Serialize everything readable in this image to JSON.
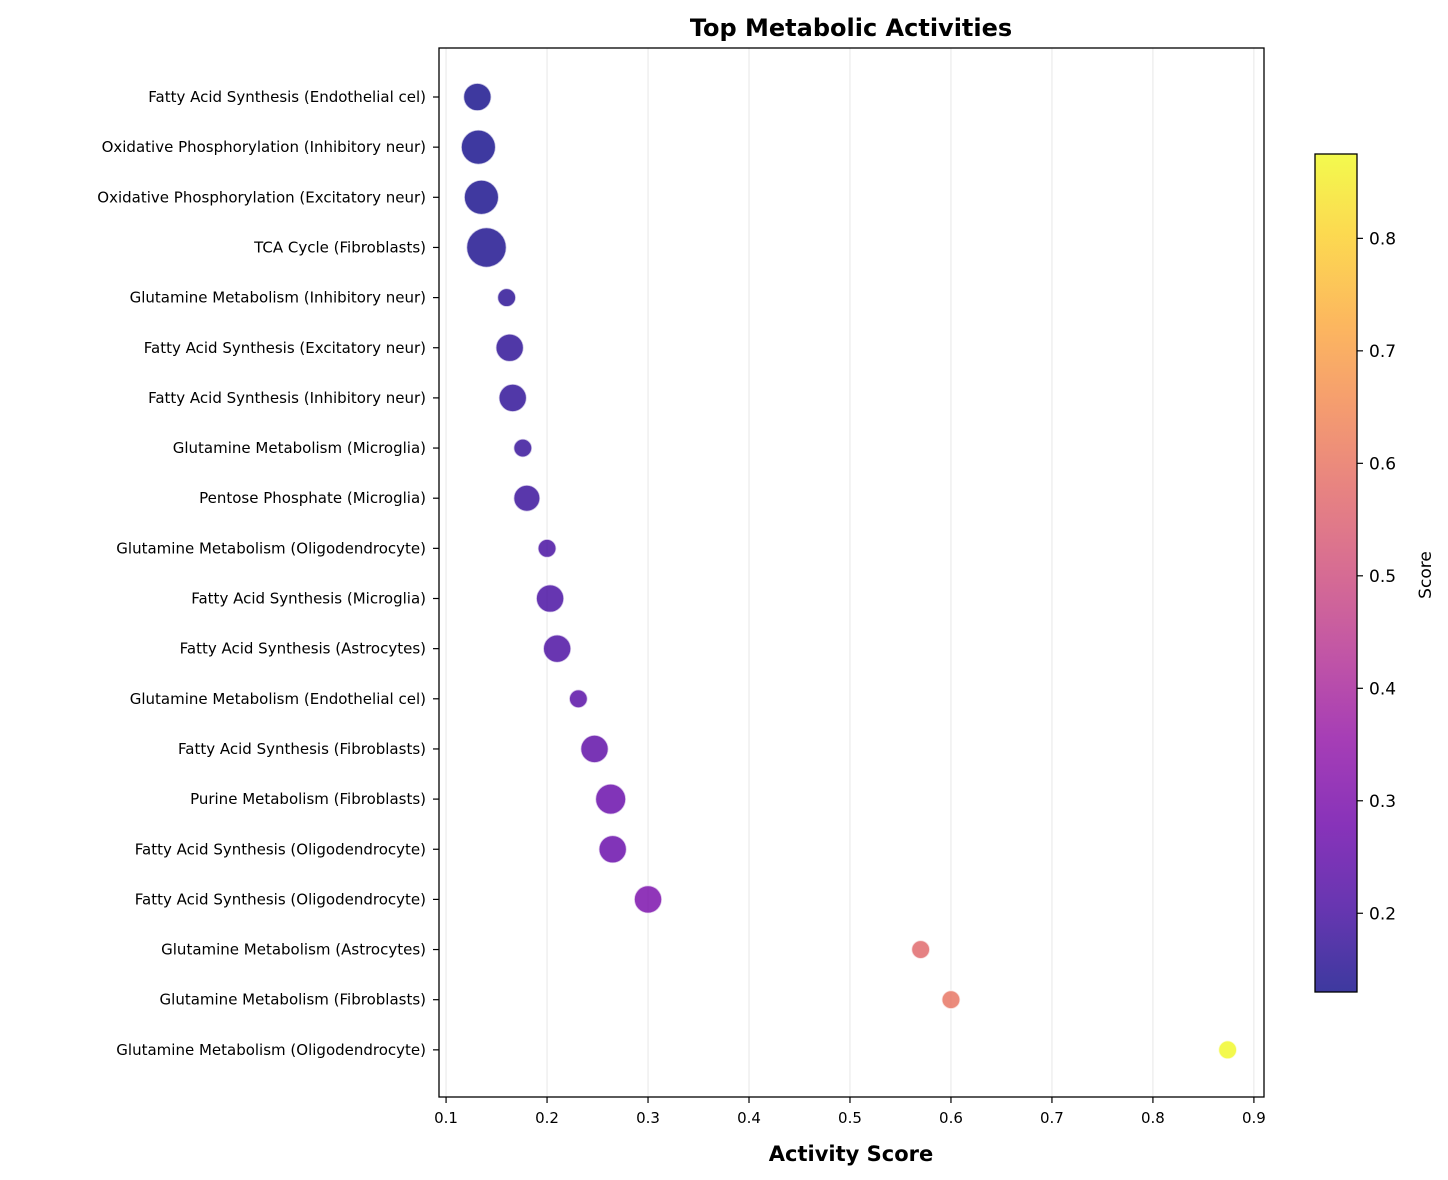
{
  "chart_data": {
    "type": "scatter",
    "title": "Top Metabolic Activities",
    "xlabel": "Activity Score",
    "ylabel": "",
    "xlim": [
      0.093,
      0.91
    ],
    "xticks": [
      0.1,
      0.2,
      0.3,
      0.4,
      0.5,
      0.6,
      0.7,
      0.8,
      0.9
    ],
    "xtick_labels": [
      "0.1",
      "0.2",
      "0.3",
      "0.4",
      "0.5",
      "0.6",
      "0.7",
      "0.8",
      "0.9"
    ],
    "grid": "vertical",
    "colormap": "plasma",
    "colorbar": {
      "label": "Score",
      "range": [
        0.13,
        0.875
      ],
      "ticks": [
        0.2,
        0.3,
        0.4,
        0.5,
        0.6,
        0.7,
        0.8
      ],
      "tick_labels": [
        "0.2",
        "0.3",
        "0.4",
        "0.5",
        "0.6",
        "0.7",
        "0.8"
      ]
    },
    "points": [
      {
        "label": "Fatty Acid Synthesis (Endothelial cel)",
        "x": 0.131,
        "size": 0.55
      },
      {
        "label": "Oxidative Phosphorylation (Inhibitory neur)",
        "x": 0.132,
        "size": 0.8
      },
      {
        "label": "Oxidative Phosphorylation (Excitatory neur)",
        "x": 0.135,
        "size": 0.8
      },
      {
        "label": "TCA Cycle (Fibroblasts)",
        "x": 0.14,
        "size": 1.0
      },
      {
        "label": "Glutamine Metabolism (Inhibitory neur)",
        "x": 0.16,
        "size": 0.2
      },
      {
        "label": "Fatty Acid Synthesis (Excitatory neur)",
        "x": 0.163,
        "size": 0.55
      },
      {
        "label": "Fatty Acid Synthesis (Inhibitory neur)",
        "x": 0.166,
        "size": 0.55
      },
      {
        "label": "Glutamine Metabolism (Microglia)",
        "x": 0.176,
        "size": 0.2
      },
      {
        "label": "Pentose Phosphate (Microglia)",
        "x": 0.18,
        "size": 0.5
      },
      {
        "label": "Glutamine Metabolism (Oligodendrocyte)",
        "x": 0.2,
        "size": 0.2
      },
      {
        "label": "Fatty Acid Synthesis (Microglia)",
        "x": 0.203,
        "size": 0.55
      },
      {
        "label": "Fatty Acid Synthesis (Astrocytes)",
        "x": 0.21,
        "size": 0.55
      },
      {
        "label": "Glutamine Metabolism (Endothelial cel)",
        "x": 0.231,
        "size": 0.2
      },
      {
        "label": "Fatty Acid Synthesis (Fibroblasts)",
        "x": 0.247,
        "size": 0.55
      },
      {
        "label": "Purine Metabolism (Fibroblasts)",
        "x": 0.263,
        "size": 0.65
      },
      {
        "label": "Fatty Acid Synthesis (Oligodendrocyte)",
        "x": 0.265,
        "size": 0.55
      },
      {
        "label": "Fatty Acid Synthesis (Oligodendrocyte)",
        "x": 0.3,
        "size": 0.55
      },
      {
        "label": "Glutamine Metabolism (Astrocytes)",
        "x": 0.57,
        "size": 0.2
      },
      {
        "label": "Glutamine Metabolism (Fibroblasts)",
        "x": 0.6,
        "size": 0.2
      },
      {
        "label": "Glutamine Metabolism (Oligodendrocyte)",
        "x": 0.874,
        "size": 0.2
      }
    ]
  }
}
